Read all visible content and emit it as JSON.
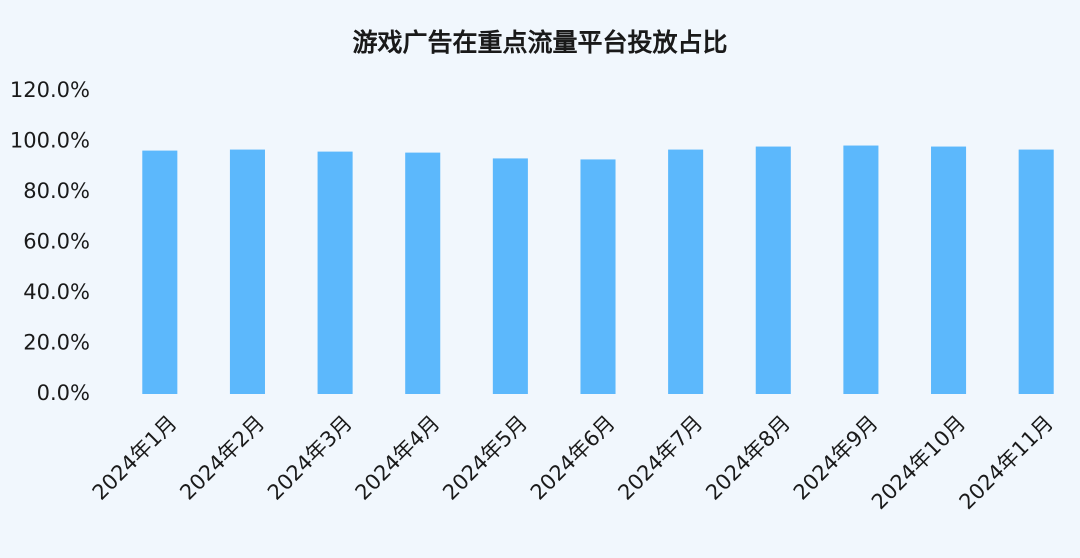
{
  "chart_data": {
    "type": "bar",
    "title": "游戏广告在重点流量平台投放占比",
    "categories": [
      "2024年1月",
      "2024年2月",
      "2024年3月",
      "2024年4月",
      "2024年5月",
      "2024年6月",
      "2024年7月",
      "2024年8月",
      "2024年9月",
      "2024年10月",
      "2024年11月"
    ],
    "values": [
      96.4,
      96.8,
      96.0,
      95.6,
      93.3,
      92.9,
      96.8,
      98.0,
      98.4,
      98.0,
      96.8
    ],
    "color": "#5cb8fc",
    "ylim": [
      0,
      120
    ],
    "yticks": [
      {
        "value": 0,
        "label": "0.0%"
      },
      {
        "value": 20,
        "label": "20.0%"
      },
      {
        "value": 40,
        "label": "40.0%"
      },
      {
        "value": 60,
        "label": "60.0%"
      },
      {
        "value": 80,
        "label": "80.0%"
      },
      {
        "value": 100,
        "label": "100.0%"
      },
      {
        "value": 120,
        "label": "120.0%"
      }
    ],
    "grid": false
  }
}
